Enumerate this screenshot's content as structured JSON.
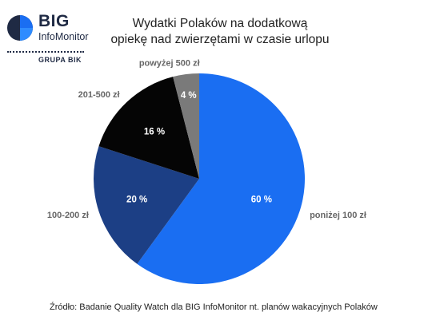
{
  "logo": {
    "name": "BIG",
    "subname": "InfoMonitor",
    "group": "GRUPA BIK"
  },
  "chart_data": {
    "type": "pie",
    "title_lines": [
      "Wydatki Polaków na dodatkową",
      "opiekę nad zwierzętami w czasie urlopu"
    ],
    "categories": [
      "poniżej 100 zł",
      "100-200 zł",
      "201-500 zł",
      "powyżej 500 zł"
    ],
    "values": [
      60,
      20,
      16,
      4
    ],
    "value_labels": [
      "60 %",
      "20 %",
      "16 %",
      "4 %"
    ],
    "colors": [
      "#1a6ef2",
      "#1c3f85",
      "#050505",
      "#7a7a7a"
    ],
    "label_color": "#666666",
    "source": "Źródło: Badanie Quality Watch dla BIG InfoMonitor nt. planów wakacyjnych Polaków"
  }
}
